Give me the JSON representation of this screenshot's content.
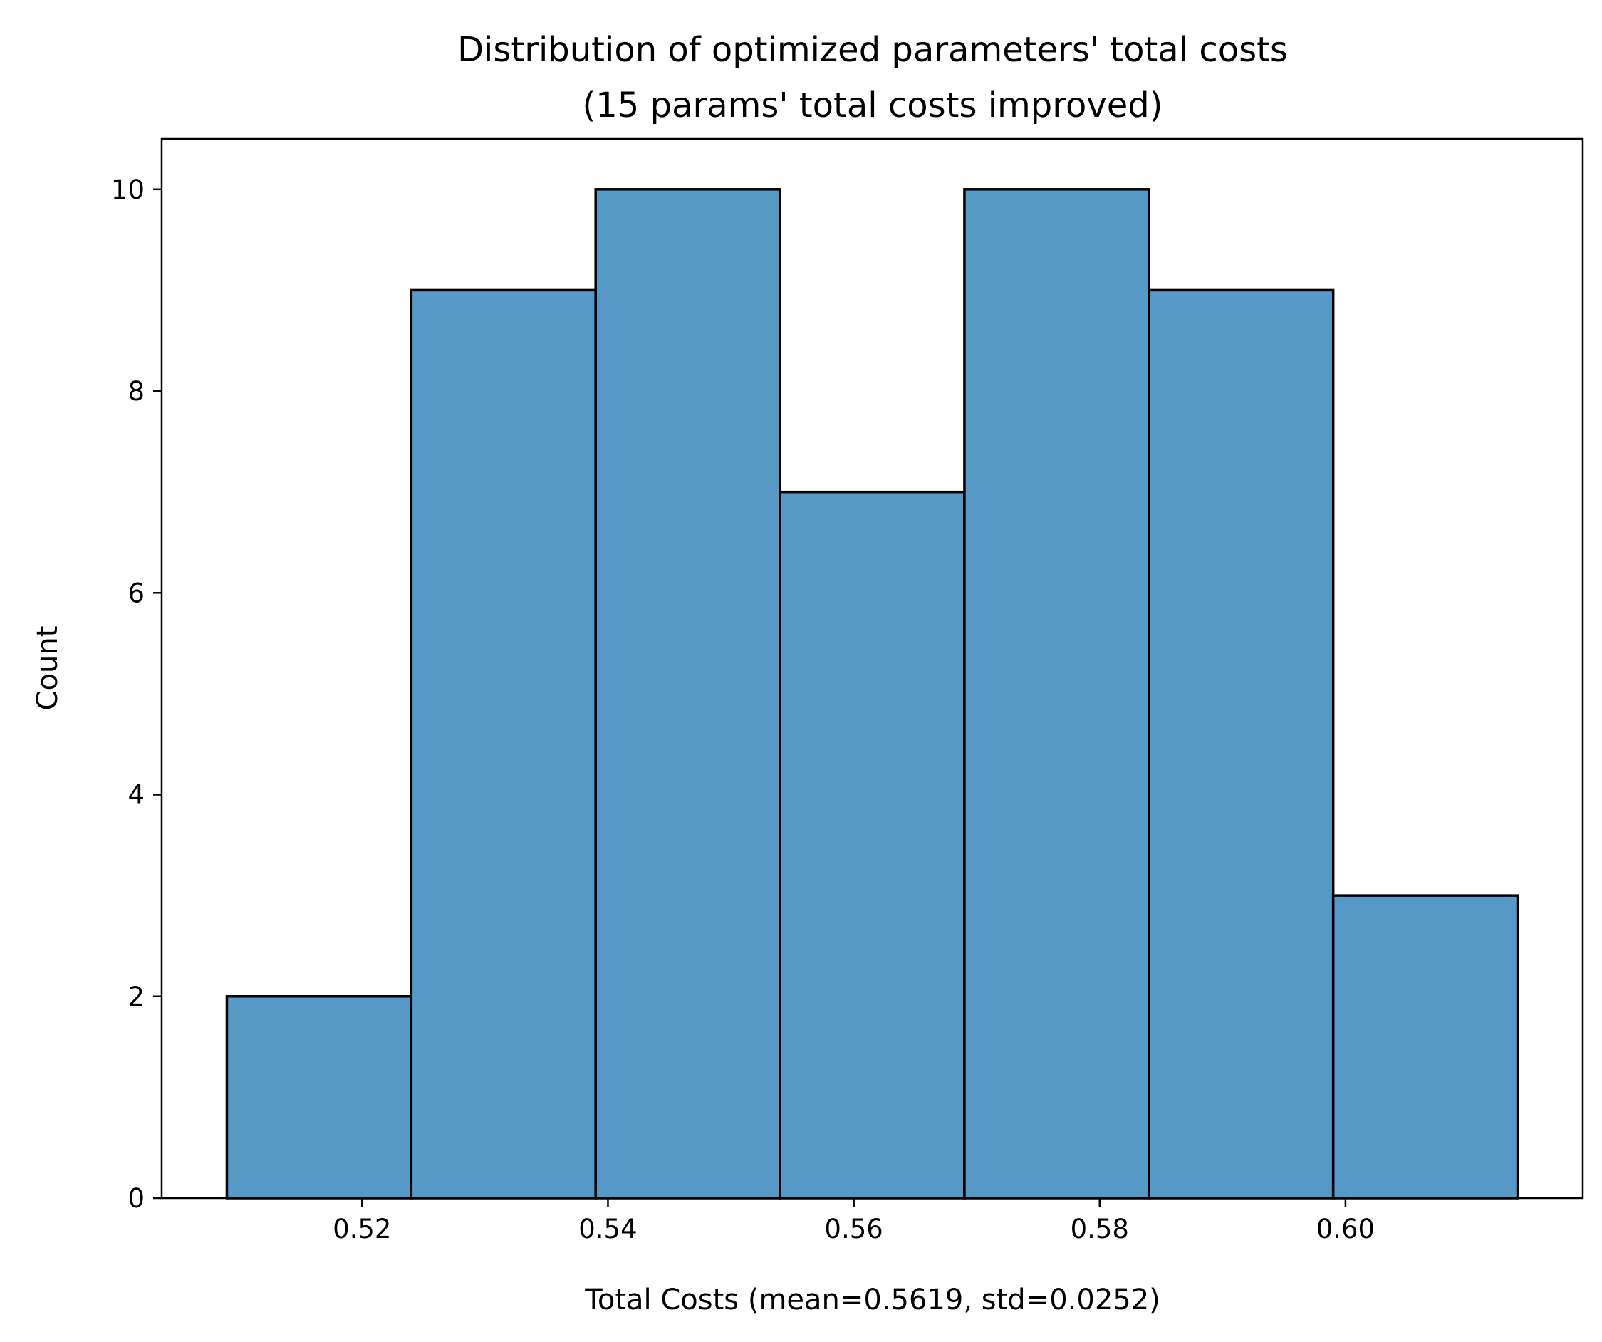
{
  "chart_data": {
    "type": "bar",
    "title": "Distribution of optimized parameters' total costs",
    "subtitle": "(15 params' total costs improved)",
    "xlabel": "Total Costs (mean=0.5619, std=0.0252)",
    "ylabel": "Count",
    "bins": [
      {
        "x0": 0.509,
        "x1": 0.524,
        "count": 2
      },
      {
        "x0": 0.524,
        "x1": 0.539,
        "count": 9
      },
      {
        "x0": 0.539,
        "x1": 0.554,
        "count": 10
      },
      {
        "x0": 0.554,
        "x1": 0.569,
        "count": 7
      },
      {
        "x0": 0.569,
        "x1": 0.584,
        "count": 10
      },
      {
        "x0": 0.584,
        "x1": 0.599,
        "count": 9
      },
      {
        "x0": 0.599,
        "x1": 0.614,
        "count": 3
      }
    ],
    "xlim": [
      0.5037,
      0.6193
    ],
    "ylim": [
      0,
      10.5
    ],
    "xticks": [
      0.52,
      0.54,
      0.56,
      0.58,
      0.6
    ],
    "xtick_labels": [
      "0.52",
      "0.54",
      "0.56",
      "0.58",
      "0.60"
    ],
    "yticks": [
      0,
      2,
      4,
      6,
      8,
      10
    ],
    "ytick_labels": [
      "0",
      "2",
      "4",
      "6",
      "8",
      "10"
    ],
    "grid": false,
    "bar_color": "#5799c6",
    "edge_color": "#000000"
  }
}
